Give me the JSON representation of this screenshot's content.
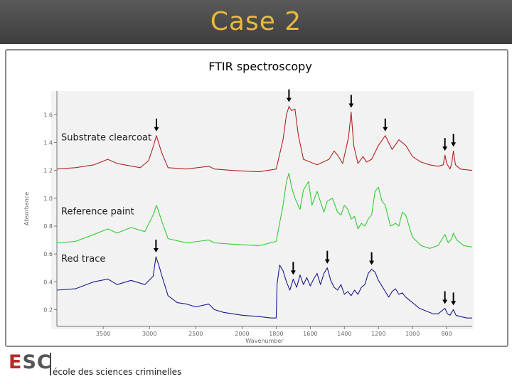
{
  "slide": {
    "title": "Case 2",
    "logo_text_first": "E",
    "logo_text_rest": "SC",
    "school_name": "école des sciences criminelles"
  },
  "colors": {
    "title_bar": "#4a4a4a",
    "title_text": "#e8b840",
    "clearcoat": "#b22222",
    "reference": "#33cc33",
    "trace": "#1a1a8c"
  },
  "chart_data": {
    "type": "line",
    "title": "FTIR spectroscopy",
    "xlabel": "Wavenumber",
    "ylabel": "Absorbance",
    "xlim": [
      4000,
      650
    ],
    "ylim": [
      0.1,
      1.75
    ],
    "x_ticks": [
      3500,
      3000,
      2500,
      2000,
      1800,
      1600,
      1400,
      1200,
      1000,
      800
    ],
    "x_tick_labels": [
      "3500",
      "3000",
      "2500",
      "2000",
      "1800",
      "1600",
      "1400",
      "1200",
      "1000",
      "800"
    ],
    "y_ticks": [
      0.2,
      0.4,
      0.6,
      0.8,
      1.0,
      1.2,
      1.4,
      1.6
    ],
    "y_tick_labels": [
      "0.2",
      "0.4",
      "0.6",
      "0.8",
      "1.0",
      "1.2",
      "1.4",
      "1.6"
    ],
    "series": [
      {
        "name": "Substrate clearcoat",
        "color": "#b22222",
        "points": [
          [
            4000,
            1.21
          ],
          [
            3800,
            1.22
          ],
          [
            3600,
            1.24
          ],
          [
            3450,
            1.28
          ],
          [
            3350,
            1.25
          ],
          [
            3100,
            1.22
          ],
          [
            3010,
            1.27
          ],
          [
            2955,
            1.38
          ],
          [
            2925,
            1.45
          ],
          [
            2870,
            1.33
          ],
          [
            2800,
            1.22
          ],
          [
            2600,
            1.21
          ],
          [
            2360,
            1.23
          ],
          [
            2300,
            1.21
          ],
          [
            2100,
            1.2
          ],
          [
            1900,
            1.19
          ],
          [
            1800,
            1.21
          ],
          [
            1760,
            1.42
          ],
          [
            1740,
            1.6
          ],
          [
            1725,
            1.66
          ],
          [
            1710,
            1.63
          ],
          [
            1690,
            1.64
          ],
          [
            1670,
            1.45
          ],
          [
            1640,
            1.28
          ],
          [
            1560,
            1.24
          ],
          [
            1490,
            1.28
          ],
          [
            1460,
            1.34
          ],
          [
            1440,
            1.31
          ],
          [
            1410,
            1.25
          ],
          [
            1375,
            1.44
          ],
          [
            1360,
            1.62
          ],
          [
            1345,
            1.38
          ],
          [
            1320,
            1.25
          ],
          [
            1290,
            1.3
          ],
          [
            1270,
            1.26
          ],
          [
            1240,
            1.28
          ],
          [
            1200,
            1.38
          ],
          [
            1160,
            1.45
          ],
          [
            1120,
            1.35
          ],
          [
            1080,
            1.42
          ],
          [
            1040,
            1.38
          ],
          [
            1000,
            1.3
          ],
          [
            950,
            1.26
          ],
          [
            900,
            1.24
          ],
          [
            850,
            1.23
          ],
          [
            820,
            1.24
          ],
          [
            810,
            1.31
          ],
          [
            800,
            1.25
          ],
          [
            780,
            1.21
          ],
          [
            770,
            1.25
          ],
          [
            760,
            1.34
          ],
          [
            748,
            1.24
          ],
          [
            720,
            1.21
          ],
          [
            650,
            1.2
          ]
        ]
      },
      {
        "name": "Reference paint",
        "color": "#33cc33",
        "points": [
          [
            4000,
            0.68
          ],
          [
            3800,
            0.69
          ],
          [
            3600,
            0.74
          ],
          [
            3450,
            0.78
          ],
          [
            3350,
            0.75
          ],
          [
            3200,
            0.79
          ],
          [
            3050,
            0.76
          ],
          [
            2960,
            0.88
          ],
          [
            2925,
            0.95
          ],
          [
            2870,
            0.84
          ],
          [
            2800,
            0.71
          ],
          [
            2600,
            0.68
          ],
          [
            2360,
            0.7
          ],
          [
            2300,
            0.68
          ],
          [
            2100,
            0.67
          ],
          [
            1900,
            0.66
          ],
          [
            1800,
            0.69
          ],
          [
            1760,
            0.95
          ],
          [
            1740,
            1.12
          ],
          [
            1725,
            1.18
          ],
          [
            1710,
            1.08
          ],
          [
            1690,
            1.0
          ],
          [
            1660,
            0.92
          ],
          [
            1640,
            1.06
          ],
          [
            1610,
            1.12
          ],
          [
            1590,
            0.95
          ],
          [
            1560,
            1.05
          ],
          [
            1520,
            0.9
          ],
          [
            1500,
            0.98
          ],
          [
            1470,
            1.0
          ],
          [
            1440,
            0.9
          ],
          [
            1420,
            0.88
          ],
          [
            1400,
            0.95
          ],
          [
            1380,
            0.92
          ],
          [
            1360,
            0.85
          ],
          [
            1340,
            0.87
          ],
          [
            1320,
            0.78
          ],
          [
            1300,
            0.82
          ],
          [
            1280,
            0.8
          ],
          [
            1260,
            0.85
          ],
          [
            1240,
            0.88
          ],
          [
            1220,
            1.05
          ],
          [
            1200,
            1.08
          ],
          [
            1180,
            0.98
          ],
          [
            1160,
            0.95
          ],
          [
            1130,
            0.8
          ],
          [
            1100,
            0.82
          ],
          [
            1080,
            0.8
          ],
          [
            1060,
            0.9
          ],
          [
            1040,
            0.88
          ],
          [
            1000,
            0.72
          ],
          [
            950,
            0.66
          ],
          [
            900,
            0.64
          ],
          [
            850,
            0.66
          ],
          [
            830,
            0.7
          ],
          [
            810,
            0.74
          ],
          [
            790,
            0.68
          ],
          [
            770,
            0.71
          ],
          [
            760,
            0.75
          ],
          [
            740,
            0.7
          ],
          [
            700,
            0.66
          ],
          [
            650,
            0.65
          ]
        ]
      },
      {
        "name": "Red trace",
        "color": "#1a1a8c",
        "points": [
          [
            4000,
            0.34
          ],
          [
            3800,
            0.35
          ],
          [
            3600,
            0.4
          ],
          [
            3450,
            0.42
          ],
          [
            3350,
            0.38
          ],
          [
            3200,
            0.41
          ],
          [
            3050,
            0.38
          ],
          [
            2960,
            0.44
          ],
          [
            2930,
            0.58
          ],
          [
            2900,
            0.52
          ],
          [
            2870,
            0.45
          ],
          [
            2800,
            0.3
          ],
          [
            2700,
            0.25
          ],
          [
            2600,
            0.24
          ],
          [
            2500,
            0.22
          ],
          [
            2360,
            0.24
          ],
          [
            2300,
            0.2
          ],
          [
            2200,
            0.18
          ],
          [
            2100,
            0.17
          ],
          [
            2000,
            0.16
          ],
          [
            1900,
            0.15
          ],
          [
            1830,
            0.14
          ],
          [
            1800,
            0.14
          ],
          [
            1795,
            0.38
          ],
          [
            1780,
            0.52
          ],
          [
            1760,
            0.48
          ],
          [
            1740,
            0.4
          ],
          [
            1720,
            0.34
          ],
          [
            1700,
            0.42
          ],
          [
            1680,
            0.36
          ],
          [
            1660,
            0.45
          ],
          [
            1640,
            0.38
          ],
          [
            1620,
            0.43
          ],
          [
            1600,
            0.37
          ],
          [
            1580,
            0.42
          ],
          [
            1560,
            0.46
          ],
          [
            1540,
            0.38
          ],
          [
            1520,
            0.46
          ],
          [
            1500,
            0.5
          ],
          [
            1480,
            0.41
          ],
          [
            1460,
            0.36
          ],
          [
            1440,
            0.34
          ],
          [
            1420,
            0.38
          ],
          [
            1400,
            0.31
          ],
          [
            1380,
            0.33
          ],
          [
            1360,
            0.3
          ],
          [
            1340,
            0.34
          ],
          [
            1320,
            0.31
          ],
          [
            1300,
            0.36
          ],
          [
            1280,
            0.38
          ],
          [
            1260,
            0.46
          ],
          [
            1240,
            0.49
          ],
          [
            1220,
            0.47
          ],
          [
            1200,
            0.41
          ],
          [
            1180,
            0.37
          ],
          [
            1160,
            0.33
          ],
          [
            1140,
            0.29
          ],
          [
            1120,
            0.33
          ],
          [
            1100,
            0.35
          ],
          [
            1080,
            0.31
          ],
          [
            1060,
            0.32
          ],
          [
            1040,
            0.29
          ],
          [
            1000,
            0.25
          ],
          [
            960,
            0.21
          ],
          [
            920,
            0.19
          ],
          [
            880,
            0.17
          ],
          [
            850,
            0.17
          ],
          [
            830,
            0.19
          ],
          [
            810,
            0.21
          ],
          [
            795,
            0.17
          ],
          [
            780,
            0.16
          ],
          [
            770,
            0.18
          ],
          [
            760,
            0.2
          ],
          [
            745,
            0.16
          ],
          [
            720,
            0.15
          ],
          [
            680,
            0.14
          ],
          [
            650,
            0.14
          ]
        ]
      }
    ],
    "markers": [
      {
        "series": "Substrate clearcoat",
        "x": 2925
      },
      {
        "series": "Substrate clearcoat",
        "x": 1725
      },
      {
        "series": "Substrate clearcoat",
        "x": 1360
      },
      {
        "series": "Substrate clearcoat",
        "x": 1160
      },
      {
        "series": "Substrate clearcoat",
        "x": 810
      },
      {
        "series": "Substrate clearcoat",
        "x": 760
      },
      {
        "series": "Red trace",
        "x": 2930
      },
      {
        "series": "Red trace",
        "x": 1700
      },
      {
        "series": "Red trace",
        "x": 1500
      },
      {
        "series": "Red trace",
        "x": 1240
      },
      {
        "series": "Red trace",
        "x": 810
      },
      {
        "series": "Red trace",
        "x": 760
      }
    ],
    "grid": false,
    "legend": "inline labels at left of each trace"
  }
}
